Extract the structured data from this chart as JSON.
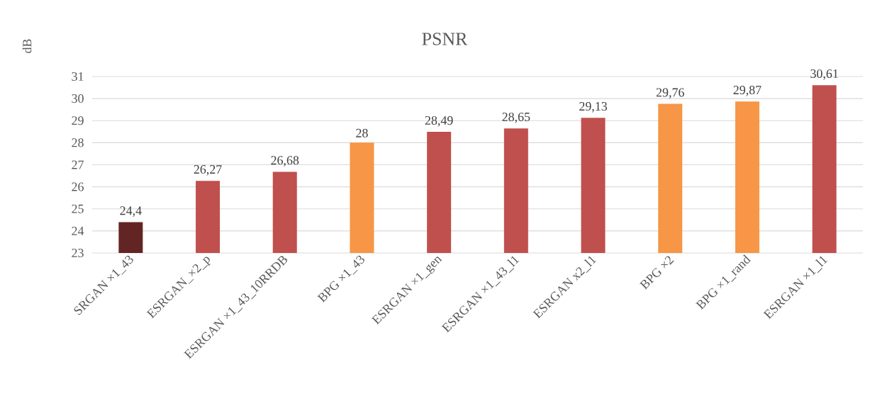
{
  "chart_data": {
    "type": "bar",
    "title": "PSNR",
    "ylabel": "dB",
    "categories": [
      "SRGAN ×1_43",
      "ESRGAN_×2_p",
      "ESRGAN ×1_43_10RRDB",
      "BPG ×1_43",
      "ESRGAN ×1_gen",
      "ESRGAN ×1_43_l1",
      "ESRGAN x2_l1",
      "BPG ×2",
      "BPG ×1_rand",
      "ESRGAN ×1_l1"
    ],
    "values": [
      24.4,
      26.27,
      26.68,
      28,
      28.49,
      28.65,
      29.13,
      29.76,
      29.87,
      30.61
    ],
    "value_labels": [
      "24,4",
      "26,27",
      "26,68",
      "28",
      "28,49",
      "28,65",
      "29,13",
      "29,76",
      "29,87",
      "30,61"
    ],
    "colors": [
      "#632523",
      "#c0504d",
      "#c0504d",
      "#f79646",
      "#c0504d",
      "#c0504d",
      "#c0504d",
      "#f79646",
      "#f79646",
      "#c0504d"
    ],
    "ylim": [
      23,
      31
    ],
    "yticks": [
      23,
      24,
      25,
      26,
      27,
      28,
      29,
      30,
      31
    ],
    "grid": "y"
  }
}
